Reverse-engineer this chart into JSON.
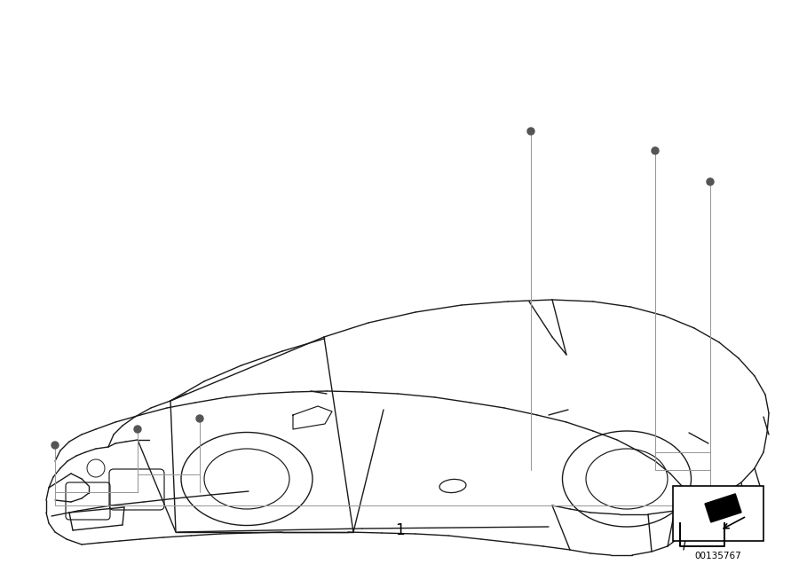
{
  "diagram_id": "00135767",
  "part_number": "1",
  "bg_color": "#ffffff",
  "fig_width": 9.0,
  "fig_height": 6.36,
  "dpi": 100
}
